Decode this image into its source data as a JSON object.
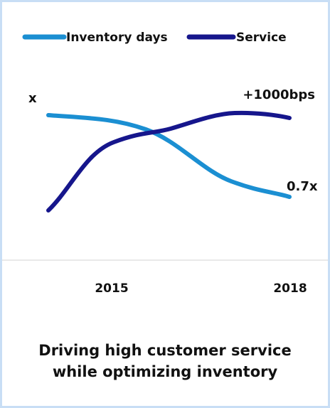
{
  "legend": [
    {
      "name": "Inventory days",
      "color": "#1b8fd2"
    },
    {
      "name": "Service",
      "color": "#16168c"
    }
  ],
  "annotations": {
    "start": "x",
    "service_end": "+1000bps",
    "inventory_end": "0.7x"
  },
  "x_labels": [
    "2015",
    "2018"
  ],
  "caption": [
    "Driving high customer service",
    "while optimizing inventory"
  ]
}
